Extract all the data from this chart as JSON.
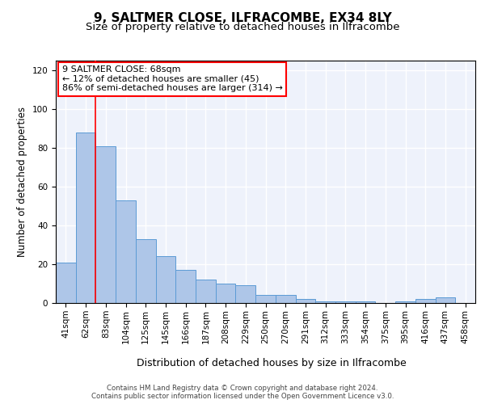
{
  "title1": "9, SALTMER CLOSE, ILFRACOMBE, EX34 8LY",
  "title2": "Size of property relative to detached houses in Ilfracombe",
  "xlabel": "Distribution of detached houses by size in Ilfracombe",
  "ylabel": "Number of detached properties",
  "categories": [
    "41sqm",
    "62sqm",
    "83sqm",
    "104sqm",
    "125sqm",
    "145sqm",
    "166sqm",
    "187sqm",
    "208sqm",
    "229sqm",
    "250sqm",
    "270sqm",
    "291sqm",
    "312sqm",
    "333sqm",
    "354sqm",
    "375sqm",
    "395sqm",
    "416sqm",
    "437sqm",
    "458sqm"
  ],
  "values": [
    21,
    88,
    81,
    53,
    33,
    24,
    17,
    12,
    10,
    9,
    4,
    4,
    2,
    1,
    1,
    1,
    0,
    1,
    2,
    3,
    0
  ],
  "bar_color": "#aec6e8",
  "bar_edge_color": "#5b9bd5",
  "red_line_x": 1.5,
  "annotation_text_line1": "9 SALTMER CLOSE: 68sqm",
  "annotation_text_line2": "← 12% of detached houses are smaller (45)",
  "annotation_text_line3": "86% of semi-detached houses are larger (314) →",
  "ylim": [
    0,
    125
  ],
  "yticks": [
    0,
    20,
    40,
    60,
    80,
    100,
    120
  ],
  "footer1": "Contains HM Land Registry data © Crown copyright and database right 2024.",
  "footer2": "Contains public sector information licensed under the Open Government Licence v3.0.",
  "bg_color": "#eef2fb",
  "grid_color": "#ffffff",
  "title1_fontsize": 11,
  "title2_fontsize": 9.5,
  "xlabel_fontsize": 9,
  "ylabel_fontsize": 8.5,
  "tick_fontsize": 7.5,
  "annotation_fontsize": 8
}
